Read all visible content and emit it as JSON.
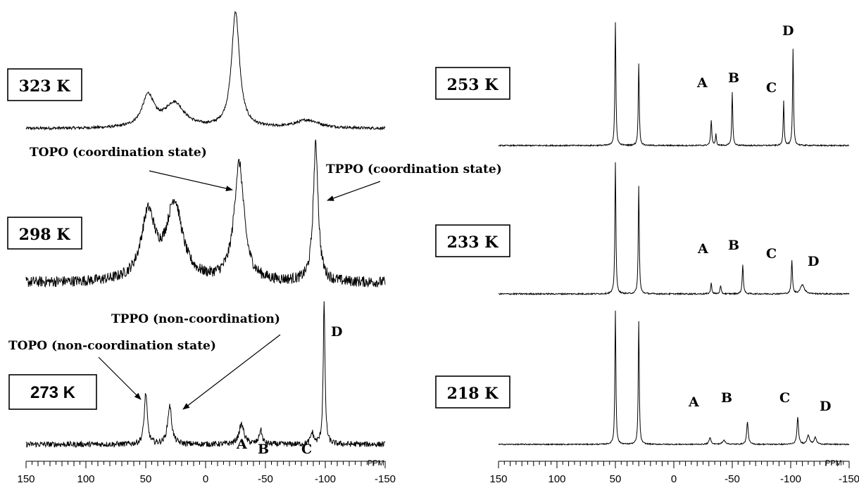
{
  "chart_data": [
    {
      "type": "line",
      "panel": "left",
      "xlabel": "PPM",
      "xlim": [
        150,
        -150
      ],
      "xticks": [
        150,
        100,
        50,
        0,
        -50,
        -100,
        -150
      ],
      "xtick_labels": [
        "150",
        "100",
        "50",
        "0",
        "-50",
        "-100",
        "-150"
      ],
      "spectra": [
        {
          "name": "323 K",
          "peaks": [
            {
              "x": 48,
              "height": 0.27,
              "width": 6
            },
            {
              "x": 26,
              "height": 0.21,
              "width": 10
            },
            {
              "x": -25,
              "height": 1.0,
              "width": 4
            },
            {
              "x": -85,
              "height": 0.07,
              "width": 12
            }
          ],
          "noise": 0.012
        },
        {
          "name": "298 K",
          "peaks": [
            {
              "x": 48,
              "height": 0.48,
              "width": 7
            },
            {
              "x": 26,
              "height": 0.56,
              "width": 8
            },
            {
              "x": -28,
              "height": 0.86,
              "width": 5
            },
            {
              "x": -92,
              "height": 1.0,
              "width": 2.5
            }
          ],
          "noise": 0.04
        },
        {
          "name": "273 K",
          "peaks": [
            {
              "x": 50,
              "height": 0.36,
              "width": 1.5
            },
            {
              "x": 30,
              "height": 0.27,
              "width": 2
            },
            {
              "x": -30,
              "height": 0.14,
              "width": 2.5
            },
            {
              "x": -46,
              "height": 0.1,
              "width": 1.5
            },
            {
              "x": -89,
              "height": 0.08,
              "width": 1.5
            },
            {
              "x": -99,
              "height": 1.0,
              "width": 0.9
            }
          ],
          "noise": 0.02
        }
      ],
      "annotations": [
        "TOPO (coordination state)",
        "TPPO (coordination state)",
        "TPPO (non-coordination)",
        "TOPO (non-coordination state)",
        "A",
        "B",
        "C",
        "D"
      ]
    },
    {
      "type": "line",
      "panel": "right",
      "xlabel": "PPM",
      "xlim": [
        150,
        -150
      ],
      "xticks": [
        150,
        100,
        50,
        0,
        -50,
        -100,
        -150
      ],
      "xtick_labels": [
        "150",
        "100",
        "50",
        "0",
        "-50",
        "-100",
        "-150"
      ],
      "spectra": [
        {
          "name": "253 K",
          "peaks": [
            {
              "x": 50,
              "height": 1.0,
              "width": 0.5
            },
            {
              "x": 30,
              "height": 0.67,
              "width": 0.5
            },
            {
              "x": -32,
              "height": 0.2,
              "width": 0.6
            },
            {
              "x": -36,
              "height": 0.09,
              "width": 0.5
            },
            {
              "x": -50,
              "height": 0.43,
              "width": 0.5
            },
            {
              "x": -94,
              "height": 0.36,
              "width": 0.5
            },
            {
              "x": -102,
              "height": 0.78,
              "width": 0.5
            }
          ],
          "noise": 0.005
        },
        {
          "name": "233 K",
          "peaks": [
            {
              "x": 50,
              "height": 1.0,
              "width": 0.5
            },
            {
              "x": 30,
              "height": 0.82,
              "width": 0.5
            },
            {
              "x": -32,
              "height": 0.08,
              "width": 0.6
            },
            {
              "x": -40,
              "height": 0.06,
              "width": 0.6
            },
            {
              "x": -59,
              "height": 0.22,
              "width": 0.6
            },
            {
              "x": -101,
              "height": 0.25,
              "width": 0.6
            },
            {
              "x": -110,
              "height": 0.07,
              "width": 2
            }
          ],
          "noise": 0.005
        },
        {
          "name": "218 K",
          "peaks": [
            {
              "x": 50,
              "height": 1.0,
              "width": 0.5
            },
            {
              "x": 30,
              "height": 0.92,
              "width": 0.5
            },
            {
              "x": -31,
              "height": 0.05,
              "width": 1
            },
            {
              "x": -43,
              "height": 0.03,
              "width": 1.5
            },
            {
              "x": -63,
              "height": 0.17,
              "width": 0.8
            },
            {
              "x": -106,
              "height": 0.2,
              "width": 0.8
            },
            {
              "x": -115,
              "height": 0.07,
              "width": 1.2
            },
            {
              "x": -121,
              "height": 0.05,
              "width": 1.2
            }
          ],
          "noise": 0.004
        }
      ],
      "annotations": [
        "A",
        "B",
        "C",
        "D"
      ]
    }
  ]
}
